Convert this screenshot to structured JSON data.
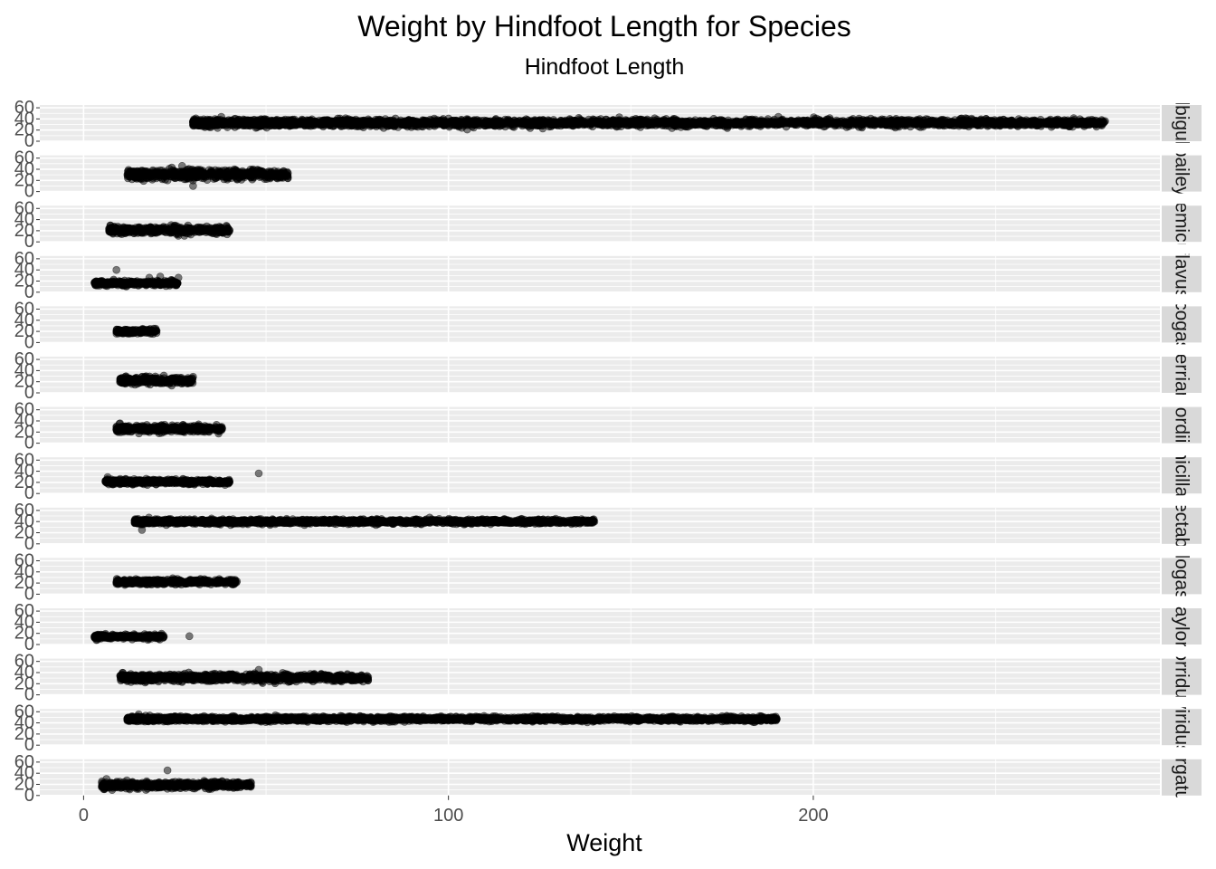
{
  "chart_data": {
    "type": "scatter",
    "title": "Weight by Hindfoot Length for Species",
    "subtitle": "Hindfoot Length",
    "xlabel": "Weight",
    "ylabel": "",
    "xlim": [
      -12,
      295
    ],
    "ylim": [
      0,
      65
    ],
    "x_ticks": [
      0,
      100,
      200
    ],
    "x_tick_labels": [
      "0",
      "100",
      "200"
    ],
    "y_ticks": [
      0,
      20,
      40,
      60
    ],
    "y_tick_labels": [
      "0",
      "20",
      "40",
      "60"
    ],
    "facet_direction": "rows",
    "grid": true,
    "marker_color": "#000000",
    "marker_alpha": 0.5,
    "panel_background": "#ebebeb",
    "strip_background": "#d9d9d9",
    "facets": [
      {
        "label": "albigula",
        "x_range": [
          30,
          280
        ],
        "y_center": 33,
        "y_spread": 3,
        "highlights": [
          [
            30,
            34
          ],
          [
            40,
            34
          ],
          [
            50,
            33
          ],
          [
            113,
            40
          ],
          [
            110,
            28
          ],
          [
            130,
            28
          ],
          [
            162,
            28
          ],
          [
            265,
            39
          ],
          [
            280,
            36
          ],
          [
            234,
            36
          ]
        ]
      },
      {
        "label": "baileyi",
        "x_range": [
          12,
          56
        ],
        "y_center": 31,
        "y_spread": 4,
        "highlights": [
          [
            27,
            46
          ],
          [
            30,
            20
          ],
          [
            30,
            10
          ],
          [
            56,
            33
          ],
          [
            12,
            30
          ],
          [
            40,
            38
          ]
        ]
      },
      {
        "label": "eremicus",
        "x_range": [
          7,
          40
        ],
        "y_center": 21,
        "y_spread": 3,
        "highlights": [
          [
            24,
            30
          ],
          [
            40,
            21
          ],
          [
            7,
            21
          ],
          [
            36,
            22
          ]
        ]
      },
      {
        "label": "flavus",
        "x_range": [
          3,
          26
        ],
        "y_center": 16,
        "y_spread": 2,
        "highlights": [
          [
            9,
            40
          ],
          [
            21,
            28
          ],
          [
            26,
            26
          ],
          [
            24,
            22
          ],
          [
            15,
            12
          ],
          [
            18,
            26
          ]
        ]
      },
      {
        "label": "leucogaster",
        "x_range": [
          9,
          20
        ],
        "y_center": 20,
        "y_spread": 2,
        "highlights": [
          [
            20,
            21
          ],
          [
            9,
            20
          ]
        ]
      },
      {
        "label": "merriami",
        "x_range": [
          10,
          30
        ],
        "y_center": 22,
        "y_spread": 3,
        "highlights": [
          [
            13,
            22
          ],
          [
            22,
            31
          ],
          [
            10,
            20
          ],
          [
            30,
            29
          ],
          [
            18,
            26
          ]
        ]
      },
      {
        "label": "ordii",
        "x_range": [
          9,
          38
        ],
        "y_center": 26,
        "y_spread": 3,
        "highlights": [
          [
            9,
            25
          ],
          [
            38,
            26
          ],
          [
            22,
            30
          ],
          [
            27,
            21
          ]
        ]
      },
      {
        "label": "penicillatus",
        "x_range": [
          6,
          40
        ],
        "y_center": 21,
        "y_spread": 2,
        "highlights": [
          [
            48,
            36
          ],
          [
            6,
            21
          ],
          [
            40,
            22
          ]
        ]
      },
      {
        "label": "spectabilis",
        "x_range": [
          14,
          140
        ],
        "y_center": 40,
        "y_spread": 2,
        "highlights": [
          [
            16,
            25
          ],
          [
            25,
            36
          ],
          [
            50,
            38
          ],
          [
            140,
            40
          ],
          [
            132,
            37
          ],
          [
            113,
            40
          ]
        ]
      },
      {
        "label": "spilogaster",
        "x_range": [
          9,
          42
        ],
        "y_center": 22,
        "y_spread": 2,
        "highlights": [
          [
            9,
            21
          ],
          [
            36,
            22
          ],
          [
            42,
            23
          ]
        ]
      },
      {
        "label": "taylori",
        "x_range": [
          3,
          22
        ],
        "y_center": 14,
        "y_spread": 2,
        "highlights": [
          [
            29,
            15
          ],
          [
            22,
            14
          ],
          [
            3,
            14
          ]
        ]
      },
      {
        "label": "torridus",
        "x_range": [
          10,
          78
        ],
        "y_center": 31,
        "y_spread": 3,
        "highlights": [
          [
            13,
            23
          ],
          [
            12,
            30
          ],
          [
            78,
            32
          ],
          [
            48,
            45
          ],
          [
            38,
            34
          ],
          [
            40,
            36
          ]
        ]
      },
      {
        "label": "viridus",
        "x_range": [
          12,
          190
        ],
        "y_center": 47,
        "y_spread": 2,
        "highlights": [
          [
            12,
            48
          ],
          [
            25,
            48
          ],
          [
            37,
            44
          ],
          [
            190,
            47
          ],
          [
            178,
            45
          ],
          [
            170,
            48
          ]
        ]
      },
      {
        "label": "virgatus",
        "x_range": [
          5,
          46
        ],
        "y_center": 19,
        "y_spread": 3,
        "highlights": [
          [
            5,
            15
          ],
          [
            23,
            45
          ],
          [
            45,
            18
          ],
          [
            14,
            19
          ],
          [
            38,
            20
          ]
        ]
      }
    ]
  }
}
